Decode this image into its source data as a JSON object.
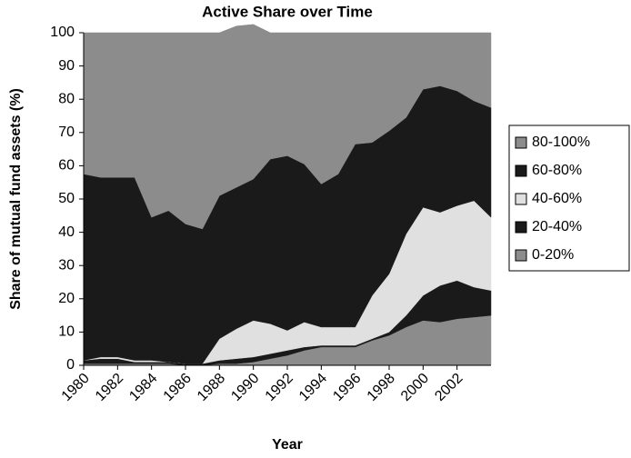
{
  "chart_data": {
    "type": "stacked-area",
    "title": "Active Share over Time",
    "x_label": "Year",
    "y_label": "Share of mutual fund assets (%)",
    "x": [
      1980,
      1981,
      1982,
      1983,
      1984,
      1985,
      1986,
      1987,
      1988,
      1989,
      1990,
      1991,
      1992,
      1993,
      1994,
      1995,
      1996,
      1997,
      1998,
      1999,
      2000,
      2001,
      2002,
      2003,
      2004
    ],
    "xlim": [
      1980,
      2004
    ],
    "xticks": [
      1980,
      1982,
      1984,
      1986,
      1988,
      1990,
      1992,
      1994,
      1996,
      1998,
      2000,
      2002
    ],
    "ylim": [
      0,
      100
    ],
    "yticks": [
      0,
      10,
      20,
      30,
      40,
      50,
      60,
      70,
      80,
      90,
      100
    ],
    "grid": false,
    "legend": "right",
    "series": [
      {
        "name": "0-20%",
        "color": "#8c8c8c",
        "values": [
          0.5,
          0.5,
          0.5,
          0.5,
          0.5,
          0.5,
          0,
          0,
          0.5,
          0.5,
          1,
          2,
          3,
          4.5,
          5.5,
          5.5,
          5.5,
          7.5,
          9,
          11.5,
          13.5,
          13,
          14,
          14.5,
          15
        ]
      },
      {
        "name": "20-40%",
        "color": "#1a1a1a",
        "values": [
          1,
          1.5,
          1.5,
          0.5,
          0.5,
          0.5,
          0.5,
          0.5,
          1,
          1.5,
          1.5,
          1.5,
          1.5,
          1,
          0.5,
          0.5,
          0.5,
          0.5,
          1,
          3.5,
          7.5,
          11,
          11.5,
          9,
          7.5
        ]
      },
      {
        "name": "40-60%",
        "color": "#e0e0e0",
        "values": [
          0,
          0.5,
          0.5,
          0.5,
          0.5,
          0,
          0,
          0,
          6.5,
          9,
          11,
          9,
          6,
          7.5,
          5.5,
          5.5,
          5.5,
          13,
          17.5,
          24.5,
          26.5,
          22,
          22.5,
          26,
          22
        ]
      },
      {
        "name": "60-80%",
        "color": "#1a1a1a",
        "values": [
          56,
          54,
          54,
          55,
          43,
          45.5,
          42,
          40.5,
          43,
          42.5,
          42.5,
          49.5,
          52.5,
          47.5,
          43,
          46,
          55,
          46,
          43,
          35,
          35.5,
          38,
          34.5,
          30,
          33
        ]
      },
      {
        "name": "80-100%",
        "color": "#8c8c8c",
        "values": [
          42.5,
          43.5,
          43.5,
          43.5,
          55.5,
          53.5,
          57.5,
          59,
          49,
          48.5,
          46.5,
          38,
          37,
          39.5,
          45.5,
          42.5,
          33.5,
          33,
          29.5,
          25.5,
          17,
          16,
          17.5,
          20.5,
          22.5
        ]
      }
    ]
  }
}
